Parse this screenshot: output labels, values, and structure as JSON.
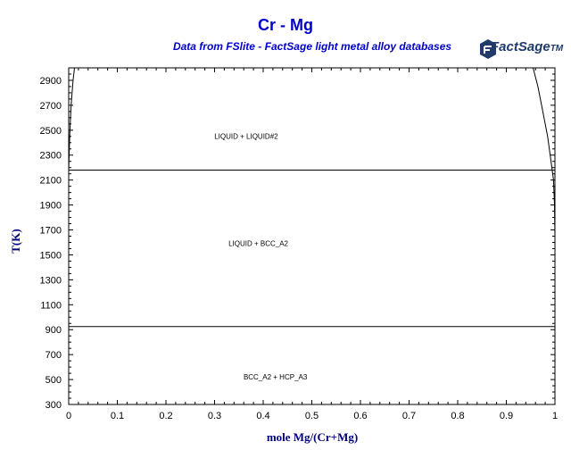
{
  "chart_data": {
    "type": "line",
    "title": "Cr - Mg",
    "subtitle": "Data from FSlite - FactSage light metal alloy databases",
    "xlabel": "mole Mg/(Cr+Mg)",
    "ylabel": "T(K)",
    "xlim": [
      0,
      1
    ],
    "ylim": [
      300,
      3000
    ],
    "x_ticks": [
      0,
      0.1,
      0.2,
      0.3,
      0.4,
      0.5,
      0.6,
      0.7,
      0.8,
      0.9,
      1
    ],
    "x_tick_labels": [
      "0",
      "0.1",
      "0.2",
      "0.3",
      "0.4",
      "0.5",
      "0.6",
      "0.7",
      "0.8",
      "0.9",
      "1"
    ],
    "y_ticks": [
      300,
      500,
      700,
      900,
      1100,
      1300,
      1500,
      1700,
      1900,
      2100,
      2300,
      2500,
      2700,
      2900
    ],
    "y_tick_labels": [
      "300",
      "500",
      "700",
      "900",
      "1100",
      "1300",
      "1500",
      "1700",
      "1900",
      "2100",
      "2300",
      "2500",
      "2700",
      "2900"
    ],
    "grid": false,
    "series": [
      {
        "points": [
          [
            0,
            2180
          ],
          [
            1,
            2180
          ]
        ]
      },
      {
        "points": [
          [
            0,
            925
          ],
          [
            1,
            925
          ]
        ]
      },
      {
        "points": [
          [
            0,
            2180
          ],
          [
            0.002,
            2450
          ],
          [
            0.005,
            2700
          ],
          [
            0.009,
            2900
          ],
          [
            0.012,
            3000
          ]
        ]
      },
      {
        "points": [
          [
            0.955,
            3000
          ],
          [
            0.965,
            2850
          ],
          [
            0.975,
            2650
          ],
          [
            0.985,
            2450
          ],
          [
            0.992,
            2250
          ],
          [
            0.997,
            2100
          ],
          [
            0.999,
            1900
          ],
          [
            1,
            1650
          ],
          [
            1,
            1500
          ]
        ]
      }
    ],
    "annotations": [
      {
        "text": "LIQUID + LIQUID#2",
        "x": 0.365,
        "y": 2430
      },
      {
        "text": "LIQUID + BCC_A2",
        "x": 0.39,
        "y": 1570
      },
      {
        "text": "BCC_A2 + HCP_A3",
        "x": 0.425,
        "y": 500
      }
    ]
  },
  "logo": {
    "text": "FactSage",
    "mark": "TM"
  }
}
